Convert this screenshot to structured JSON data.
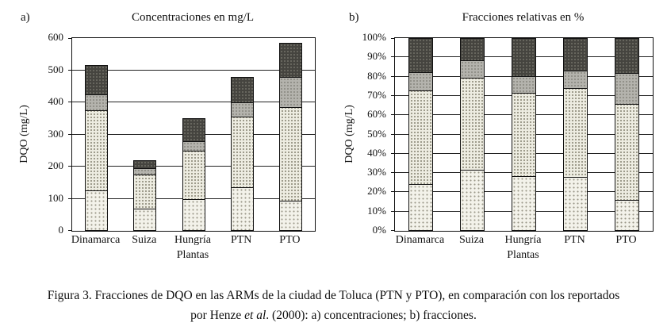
{
  "figure": {
    "caption": {
      "line1": "Figura 3. Fracciones de DQO en las ARMs de la ciudad de Toluca (PTN y PTO), en comparación con los reportados",
      "line2_pre": "por Henze ",
      "line2_italic": "et al",
      "line2_post": ". (2000): a) concentraciones; b) fracciones."
    },
    "colors": {
      "fraction1": "#f3f2ea",
      "fraction2": "#edece1",
      "fraction3": "#b4b3ad",
      "fraction4": "#45443f",
      "axis": "#111111"
    }
  },
  "chart_data": [
    {
      "type": "bar",
      "subtype": "stacked",
      "panel": "a)",
      "title": "Concentraciones en mg/L",
      "ylabel": "DQO (mg/L)",
      "xlabel": "Plantas",
      "categories": [
        "Dinamarca",
        "Suiza",
        "Hungría",
        "PTN",
        "PTO"
      ],
      "series": [
        {
          "name": "fraction-1",
          "values": [
            125,
            70,
            100,
            135,
            95
          ]
        },
        {
          "name": "fraction-2",
          "values": [
            250,
            105,
            150,
            220,
            290
          ]
        },
        {
          "name": "fraction-3",
          "values": [
            50,
            20,
            30,
            45,
            95
          ]
        },
        {
          "name": "fraction-4",
          "values": [
            90,
            25,
            70,
            80,
            105
          ]
        }
      ],
      "totals": [
        515,
        220,
        350,
        480,
        585
      ],
      "ylim": [
        0,
        600
      ],
      "ytick_step": 100,
      "ytick_format": "plain",
      "grid": true,
      "legend": "none"
    },
    {
      "type": "bar",
      "subtype": "stacked-100",
      "panel": "b)",
      "title": "Fracciones relativas en %",
      "ylabel": "DQO (mg/L)",
      "xlabel": "Plantas",
      "categories": [
        "Dinamarca",
        "Suiza",
        "Hungría",
        "PTN",
        "PTO"
      ],
      "series": [
        {
          "name": "fraction-1",
          "values": [
            24.3,
            31.8,
            28.6,
            28.1,
            16.2
          ]
        },
        {
          "name": "fraction-2",
          "values": [
            48.5,
            47.7,
            42.9,
            45.8,
            49.6
          ]
        },
        {
          "name": "fraction-3",
          "values": [
            9.7,
            9.1,
            8.6,
            9.4,
            16.2
          ]
        },
        {
          "name": "fraction-4",
          "values": [
            17.5,
            11.4,
            19.9,
            16.7,
            18.0
          ]
        }
      ],
      "ylim": [
        0,
        100
      ],
      "ytick_step": 10,
      "ytick_format": "percent",
      "grid": true,
      "legend": "none"
    }
  ]
}
